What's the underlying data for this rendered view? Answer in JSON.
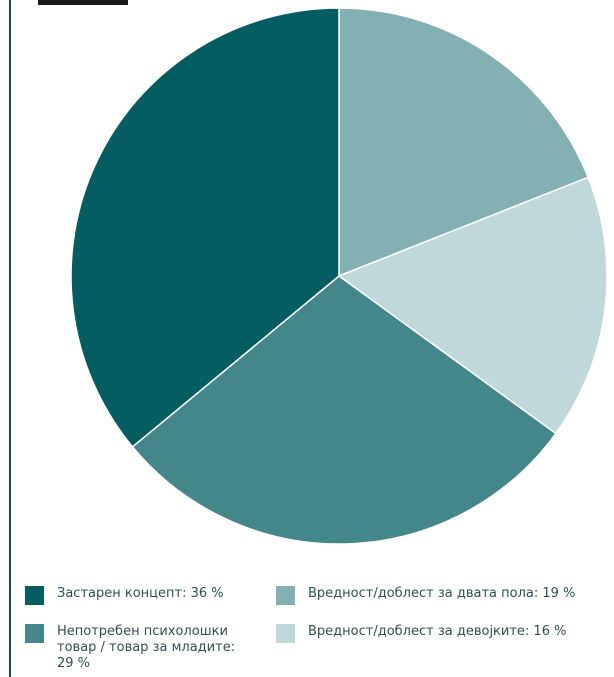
{
  "chart_data": {
    "type": "pie",
    "title": "",
    "slices": [
      {
        "label": "Вредност/доблест за двата пола",
        "value": 19,
        "color": "#82b0b3"
      },
      {
        "label": "Вредност/доблест за девојките",
        "value": 16,
        "color": "#bfd8da"
      },
      {
        "label": "Непотребен психолошки товар / товар за младите",
        "value": 29,
        "color": "#43878b"
      },
      {
        "label": "Застарен концепт",
        "value": 36,
        "color": "#045d61"
      }
    ],
    "start_angle_deg": 0,
    "direction": "clockwise"
  },
  "legend": {
    "items": [
      {
        "text": "Застарен концепт: 36 %",
        "color": "#045d61"
      },
      {
        "text": "Вредност/доблест за двата пола: 19 %",
        "color": "#82b0b3"
      },
      {
        "text": "Непотребен психолошки\nтовар / товар за младите:\n29 %",
        "color": "#43878b"
      },
      {
        "text": "Вредност/доблест за девојките: 16 %",
        "color": "#bfd8da"
      }
    ]
  }
}
